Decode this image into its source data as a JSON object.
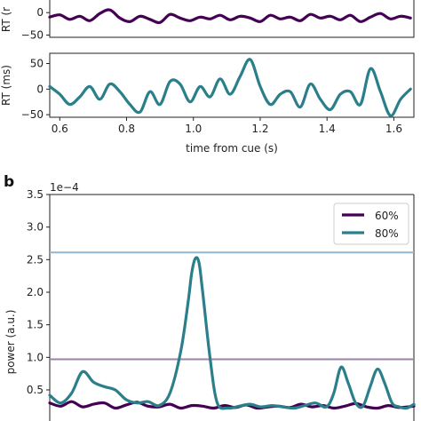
{
  "figure": {
    "panel_b_letter": "b",
    "top_xlabel": "time from cue (s)",
    "top_ylabel_1": "RT (r",
    "top_ylabel_2": "RT (ms)",
    "b_ylabel": "power (a.u.)",
    "b_offset_text": "1e−4"
  },
  "chart_data": [
    {
      "type": "line",
      "name": "top-panel-1",
      "xlim": [
        0.57,
        1.66
      ],
      "ylim": [
        -55,
        40
      ],
      "yticks": [
        0,
        -50
      ],
      "ytick_labels": [
        "0",
        "−50"
      ],
      "ylabel": "RT (r",
      "series": [
        {
          "color": "#440154",
          "x": [
            0.57,
            0.6,
            0.63,
            0.66,
            0.69,
            0.72,
            0.75,
            0.78,
            0.81,
            0.84,
            0.87,
            0.9,
            0.93,
            0.96,
            0.99,
            1.02,
            1.05,
            1.08,
            1.11,
            1.14,
            1.17,
            1.2,
            1.23,
            1.26,
            1.29,
            1.32,
            1.35,
            1.38,
            1.41,
            1.44,
            1.47,
            1.5,
            1.53,
            1.56,
            1.59,
            1.62,
            1.65
          ],
          "y": [
            -10,
            -5,
            -15,
            -8,
            -18,
            -2,
            6,
            -12,
            -20,
            -8,
            -15,
            -22,
            -4,
            -12,
            -18,
            -10,
            -14,
            -6,
            -16,
            -8,
            -12,
            -20,
            -6,
            -14,
            -10,
            -18,
            -4,
            -12,
            -8,
            -16,
            -6,
            -20,
            -10,
            -2,
            -14,
            -8,
            -12
          ]
        }
      ]
    },
    {
      "type": "line",
      "name": "top-panel-2",
      "xlim": [
        0.57,
        1.66
      ],
      "ylim": [
        -55,
        70
      ],
      "yticks": [
        50,
        0,
        -50
      ],
      "ytick_labels": [
        "50",
        "0",
        "−50"
      ],
      "xticks": [
        0.6,
        0.8,
        1.0,
        1.2,
        1.4,
        1.6
      ],
      "xtick_labels": [
        "0.6",
        "0.8",
        "1.0",
        "1.2",
        "1.4",
        "1.6"
      ],
      "xlabel": "time from cue (s)",
      "ylabel": "RT (ms)",
      "series": [
        {
          "color": "#2a7f8a",
          "x": [
            0.57,
            0.6,
            0.63,
            0.66,
            0.69,
            0.72,
            0.75,
            0.78,
            0.81,
            0.84,
            0.87,
            0.9,
            0.93,
            0.96,
            0.99,
            1.02,
            1.05,
            1.08,
            1.11,
            1.14,
            1.17,
            1.2,
            1.23,
            1.26,
            1.29,
            1.32,
            1.35,
            1.38,
            1.41,
            1.44,
            1.47,
            1.5,
            1.53,
            1.56,
            1.59,
            1.62,
            1.65
          ],
          "y": [
            5,
            -10,
            -30,
            -15,
            5,
            -20,
            10,
            -5,
            -30,
            -45,
            -5,
            -30,
            15,
            10,
            -25,
            5,
            -15,
            20,
            -10,
            25,
            58,
            5,
            -30,
            -10,
            -5,
            -35,
            10,
            -20,
            -40,
            -10,
            -5,
            -30,
            40,
            -5,
            -52,
            -20,
            0
          ]
        }
      ]
    },
    {
      "type": "line",
      "name": "panel-b",
      "xlim": [
        0,
        1
      ],
      "ylim": [
        0.2,
        3.5
      ],
      "yticks": [
        0.5,
        1.0,
        1.5,
        2.0,
        2.5,
        3.0,
        3.5
      ],
      "ytick_labels": [
        "0.5",
        "1.0",
        "1.5",
        "2.0",
        "2.5",
        "3.0",
        "3.5"
      ],
      "ylabel": "power (a.u.)",
      "offset_text": "1e−4",
      "hlines": [
        {
          "y": 2.61,
          "color": "#92b6cc"
        },
        {
          "y": 0.97,
          "color": "#9b82a6"
        }
      ],
      "legend": {
        "placement": "top-right"
      },
      "series": [
        {
          "name": "60%",
          "color": "#440154",
          "x": [
            0.0,
            0.03,
            0.06,
            0.09,
            0.12,
            0.15,
            0.18,
            0.21,
            0.24,
            0.27,
            0.3,
            0.33,
            0.36,
            0.39,
            0.42,
            0.45,
            0.48,
            0.51,
            0.54,
            0.57,
            0.6,
            0.63,
            0.66,
            0.69,
            0.72,
            0.75,
            0.78,
            0.81,
            0.84,
            0.87,
            0.9,
            0.93,
            0.96,
            1.0
          ],
          "y": [
            0.3,
            0.25,
            0.32,
            0.24,
            0.28,
            0.3,
            0.22,
            0.27,
            0.31,
            0.25,
            0.24,
            0.28,
            0.22,
            0.26,
            0.25,
            0.22,
            0.26,
            0.23,
            0.27,
            0.22,
            0.24,
            0.25,
            0.23,
            0.28,
            0.24,
            0.26,
            0.22,
            0.25,
            0.29,
            0.24,
            0.22,
            0.26,
            0.23,
            0.25
          ]
        },
        {
          "name": "80%",
          "color": "#2a7f8a",
          "x": [
            0.0,
            0.03,
            0.06,
            0.09,
            0.12,
            0.15,
            0.18,
            0.21,
            0.24,
            0.27,
            0.3,
            0.33,
            0.36,
            0.38,
            0.39,
            0.4,
            0.41,
            0.42,
            0.44,
            0.46,
            0.49,
            0.52,
            0.55,
            0.58,
            0.61,
            0.64,
            0.67,
            0.7,
            0.73,
            0.76,
            0.78,
            0.8,
            0.82,
            0.84,
            0.86,
            0.88,
            0.9,
            0.92,
            0.94,
            0.96,
            0.98,
            1.0
          ],
          "y": [
            0.42,
            0.3,
            0.45,
            0.78,
            0.62,
            0.55,
            0.5,
            0.35,
            0.3,
            0.32,
            0.26,
            0.45,
            1.1,
            1.85,
            2.3,
            2.52,
            2.45,
            2.0,
            1.0,
            0.3,
            0.22,
            0.25,
            0.28,
            0.24,
            0.26,
            0.24,
            0.22,
            0.26,
            0.3,
            0.24,
            0.45,
            0.85,
            0.6,
            0.3,
            0.25,
            0.55,
            0.82,
            0.6,
            0.3,
            0.24,
            0.22,
            0.28
          ]
        }
      ]
    }
  ]
}
